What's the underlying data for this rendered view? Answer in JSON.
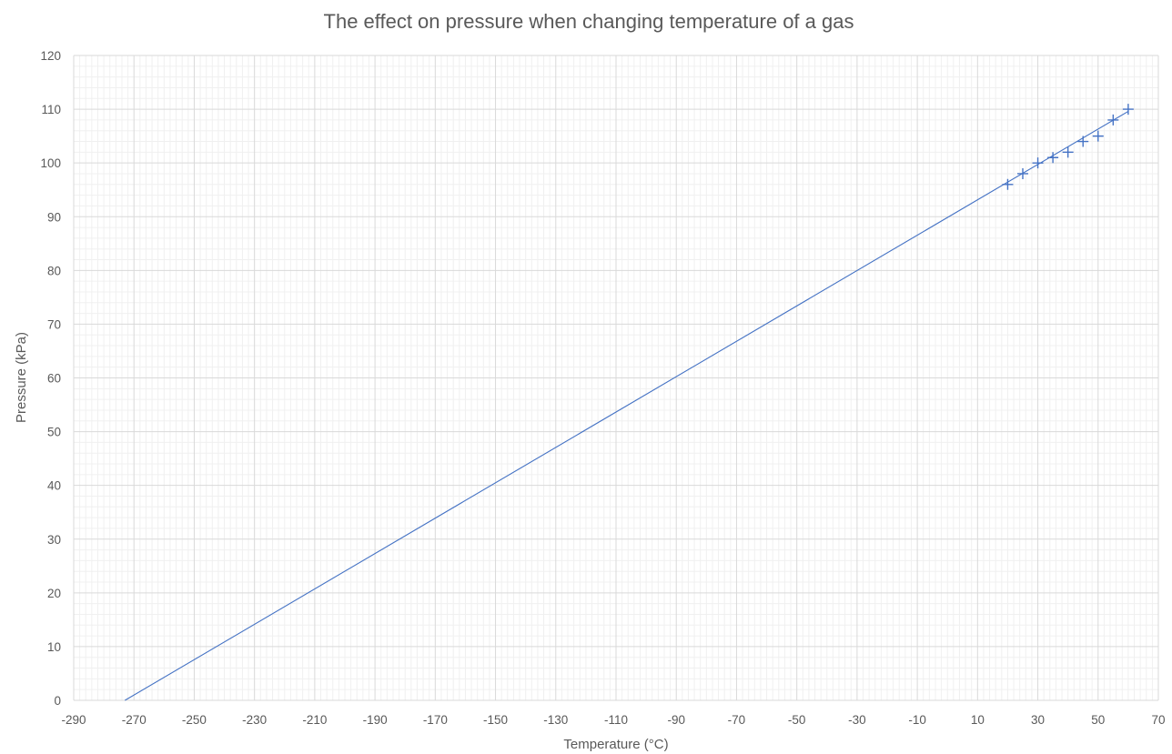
{
  "chart_data": {
    "type": "scatter",
    "title": "The effect on pressure when changing temperature of a gas",
    "xlabel": "Temperature (°C)",
    "ylabel": "Pressure (kPa)",
    "xlim": [
      -290,
      70
    ],
    "ylim": [
      0,
      120
    ],
    "x_major_step": 20,
    "x_minor_step": 2,
    "y_major_step": 10,
    "y_minor_step": 2,
    "x_tick_labels": [
      "-290",
      "-270",
      "-250",
      "-230",
      "-210",
      "-190",
      "-170",
      "-150",
      "-130",
      "-110",
      "-90",
      "-70",
      "-50",
      "-30",
      "-10",
      "10",
      "30",
      "50",
      "70"
    ],
    "y_tick_labels": [
      "0",
      "10",
      "20",
      "30",
      "40",
      "50",
      "60",
      "70",
      "80",
      "90",
      "100",
      "110",
      "120"
    ],
    "grid": true,
    "legend": "none",
    "series": [
      {
        "marker": "plus",
        "color": "#4472C4",
        "points": [
          {
            "x": 20,
            "y": 96
          },
          {
            "x": 25,
            "y": 98
          },
          {
            "x": 30,
            "y": 100
          },
          {
            "x": 35,
            "y": 101
          },
          {
            "x": 40,
            "y": 102
          },
          {
            "x": 45,
            "y": 104
          },
          {
            "x": 50,
            "y": 105
          },
          {
            "x": 55,
            "y": 108
          },
          {
            "x": 60,
            "y": 110
          }
        ]
      }
    ],
    "trendline": {
      "type": "linear",
      "color": "#4472C4",
      "from": {
        "x": -273,
        "y": 0
      },
      "to": {
        "x": 60,
        "y": 109.6
      }
    }
  },
  "colors": {
    "major_grid": "#d9d9d9",
    "minor_grid": "#f0f0f0",
    "text": "#595959"
  }
}
